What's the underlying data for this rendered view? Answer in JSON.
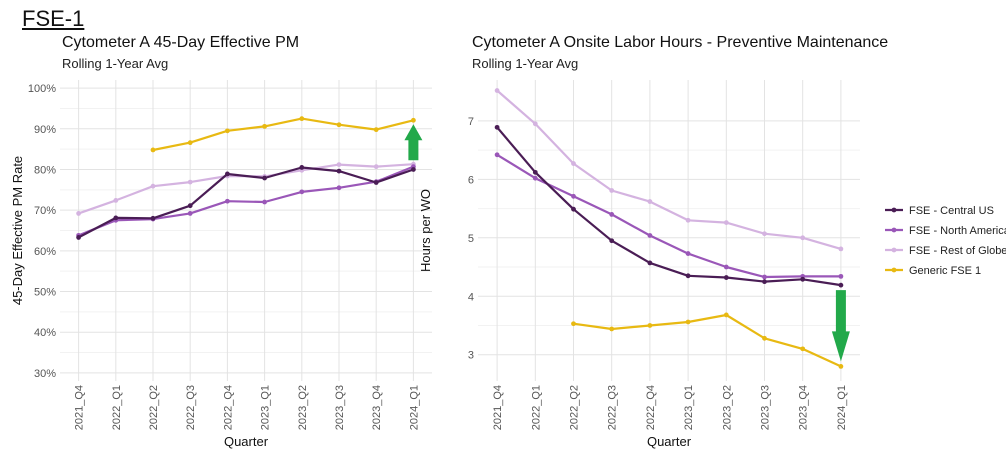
{
  "page": {
    "title": "FSE-1"
  },
  "chart_data": [
    {
      "type": "line",
      "title": "Cytometer A 45-Day Effective PM",
      "subtitle": "Rolling 1-Year Avg",
      "xlabel": "Quarter",
      "ylabel": "45-Day Effective PM Rate",
      "categories": [
        "2021_Q4",
        "2022_Q1",
        "2022_Q2",
        "2022_Q3",
        "2022_Q4",
        "2023_Q1",
        "2023_Q2",
        "2023_Q3",
        "2023_Q4",
        "2024_Q1"
      ],
      "ylim": [
        28,
        102
      ],
      "yticks": [
        30,
        40,
        50,
        60,
        70,
        80,
        90,
        100
      ],
      "ytick_labels": [
        "30%",
        "40%",
        "50%",
        "60%",
        "70%",
        "80%",
        "90%",
        "100%"
      ],
      "grid": true,
      "series": [
        {
          "name": "FSE - Rest of Globe",
          "color": "#d4b3e0",
          "values": [
            69.2,
            72.4,
            75.9,
            76.9,
            78.4,
            78.3,
            79.8,
            81.2,
            80.7,
            81.3
          ]
        },
        {
          "name": "FSE - North America",
          "color": "#9a57b8",
          "values": [
            63.8,
            67.5,
            67.8,
            69.2,
            72.2,
            72.0,
            74.5,
            75.5,
            77.0,
            80.7
          ]
        },
        {
          "name": "FSE - Central US",
          "color": "#4a1d55",
          "values": [
            63.3,
            68.1,
            68.0,
            71.1,
            78.9,
            77.9,
            80.5,
            79.6,
            76.8,
            80.0
          ]
        },
        {
          "name": "Generic FSE 1",
          "color": "#e8b912",
          "values": [
            null,
            null,
            84.8,
            86.6,
            89.5,
            90.6,
            92.5,
            91.0,
            89.8,
            92.1
          ]
        }
      ],
      "annotation": {
        "type": "up-arrow",
        "color": "#22a94a"
      }
    },
    {
      "type": "line",
      "title": "Cytometer A Onsite Labor Hours - Preventive Maintenance",
      "subtitle": "Rolling 1-Year Avg",
      "xlabel": "Quarter",
      "ylabel": "Hours per WO",
      "categories": [
        "2021_Q4",
        "2022_Q1",
        "2022_Q2",
        "2022_Q3",
        "2022_Q4",
        "2023_Q1",
        "2023_Q2",
        "2023_Q3",
        "2023_Q4",
        "2024_Q1"
      ],
      "ylim": [
        2.55,
        7.7
      ],
      "yticks": [
        3,
        4,
        5,
        6,
        7
      ],
      "ytick_labels": [
        "3",
        "4",
        "5",
        "6",
        "7"
      ],
      "grid": true,
      "legend_position": "right",
      "series": [
        {
          "name": "FSE - Rest of Globe",
          "color": "#d4b3e0",
          "values": [
            7.52,
            6.95,
            6.27,
            5.81,
            5.62,
            5.3,
            5.26,
            5.07,
            5.0,
            4.81
          ]
        },
        {
          "name": "FSE - North America",
          "color": "#9a57b8",
          "values": [
            6.42,
            6.02,
            5.71,
            5.4,
            5.04,
            4.73,
            4.5,
            4.33,
            4.34,
            4.34
          ]
        },
        {
          "name": "FSE - Central US",
          "color": "#4a1d55",
          "values": [
            6.89,
            6.12,
            5.49,
            4.95,
            4.57,
            4.35,
            4.32,
            4.25,
            4.29,
            4.19
          ]
        },
        {
          "name": "Generic FSE 1",
          "color": "#e8b912",
          "values": [
            null,
            null,
            3.53,
            3.44,
            3.5,
            3.56,
            3.68,
            3.28,
            3.1,
            2.8
          ]
        }
      ],
      "legend_order": [
        "FSE - Central US",
        "FSE - North America",
        "FSE - Rest of Globe",
        "Generic FSE 1"
      ],
      "annotation": {
        "type": "down-arrow",
        "color": "#22a94a"
      }
    }
  ]
}
